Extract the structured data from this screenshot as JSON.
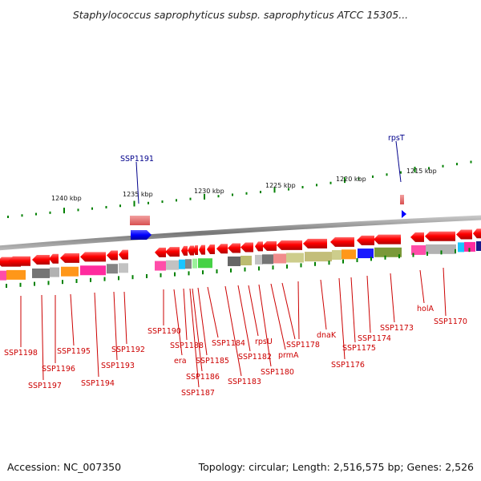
{
  "header": {
    "title": "Staphylococcus saprophyticus subsp. saprophyticus ATCC 15305..."
  },
  "footer": {
    "accession": "Accession: NC_007350",
    "summary": "Topology: circular; Length: 2,516,575 bp; Genes: 2,526"
  },
  "ruler": {
    "ticks": [
      "1240 kbp",
      "1235 kbp",
      "1230 kbp",
      "1225 kbp",
      "1220 kbp",
      "1215 kbp"
    ]
  },
  "forward_genes": [
    "SSP1191",
    "rpsT"
  ],
  "reverse_genes": [
    "SSP1198",
    "SSP1197",
    "SSP1196",
    "SSP1195",
    "SSP1194",
    "SSP1193",
    "SSP1192",
    "SSP1190",
    "era",
    "SSP1188",
    "SSP1187",
    "SSP1186",
    "SSP1185",
    "SSP1184",
    "SSP1183",
    "SSP1182",
    "rpsU",
    "SSP1180",
    "prmA",
    "SSP1178",
    "dnaK",
    "SSP1176",
    "SSP1175",
    "SSP1174",
    "SSP1173",
    "holA",
    "SSP1170"
  ],
  "colors": {
    "gene": "#ff0000",
    "backbone": "#808080",
    "forward_marker": "#0000ff",
    "tick": "#008000"
  }
}
